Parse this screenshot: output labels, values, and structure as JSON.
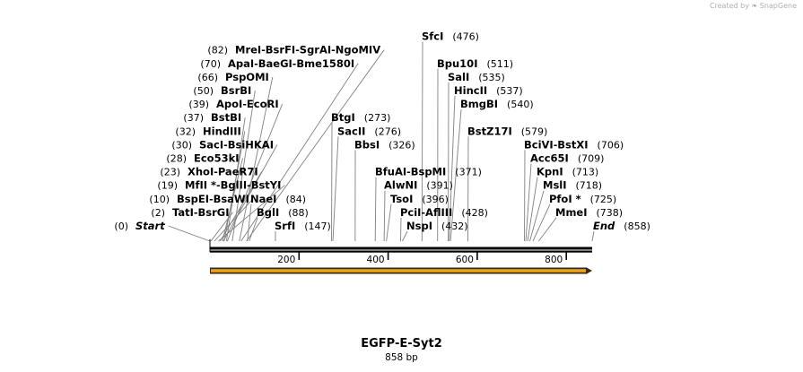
{
  "watermark": {
    "text": "Created by",
    "brand": "SnapGene"
  },
  "map": {
    "name": "EGFP-E-Syt2",
    "length_label": "858 bp",
    "length_bp": 858,
    "axis_ticks": [
      200,
      400,
      600,
      800
    ],
    "feature": {
      "start": 1,
      "end": 858,
      "color": "#f0a020",
      "direction": "forward"
    }
  },
  "sites": [
    {
      "label_pos": 0,
      "enzymes": [
        "Start"
      ],
      "italic": true
    },
    {
      "label_pos": 2,
      "enzymes": [
        "TatI",
        "BsrGI"
      ]
    },
    {
      "label_pos": 10,
      "enzymes": [
        "BspEI",
        "BsaWI"
      ]
    },
    {
      "label_pos": 19,
      "enzymes": [
        "MfII *",
        "BglII",
        "BstYI"
      ]
    },
    {
      "label_pos": 23,
      "enzymes": [
        "XhoI",
        "PaeR7I"
      ]
    },
    {
      "label_pos": 28,
      "enzymes": [
        "Eco53kI"
      ]
    },
    {
      "label_pos": 30,
      "enzymes": [
        "SacI",
        "BsiHKAI"
      ]
    },
    {
      "label_pos": 32,
      "enzymes": [
        "HindIII"
      ]
    },
    {
      "label_pos": 37,
      "enzymes": [
        "BstBI"
      ]
    },
    {
      "label_pos": 39,
      "enzymes": [
        "ApoI",
        "EcoRI"
      ]
    },
    {
      "label_pos": 50,
      "enzymes": [
        "BsrBI"
      ]
    },
    {
      "label_pos": 66,
      "enzymes": [
        "PspOMI"
      ]
    },
    {
      "label_pos": 70,
      "enzymes": [
        "ApaI",
        "BaeGI",
        "Bme1580I"
      ]
    },
    {
      "label_pos": 82,
      "enzymes": [
        "MreI",
        "BsrFI",
        "SgrAI",
        "NgoMIV"
      ]
    },
    {
      "label_pos": 84,
      "enzymes": [
        "NaeI"
      ]
    },
    {
      "label_pos": 88,
      "enzymes": [
        "BglI"
      ]
    },
    {
      "label_pos": 147,
      "enzymes": [
        "SrfI"
      ]
    },
    {
      "label_pos": 273,
      "enzymes": [
        "BtgI"
      ]
    },
    {
      "label_pos": 276,
      "enzymes": [
        "SacII"
      ]
    },
    {
      "label_pos": 326,
      "enzymes": [
        "BbsI"
      ]
    },
    {
      "label_pos": 371,
      "enzymes": [
        "BfuAI",
        "BspMI"
      ]
    },
    {
      "label_pos": 391,
      "enzymes": [
        "AlwNI"
      ]
    },
    {
      "label_pos": 396,
      "enzymes": [
        "TsoI"
      ]
    },
    {
      "label_pos": 428,
      "enzymes": [
        "PciI",
        "AflIII"
      ]
    },
    {
      "label_pos": 432,
      "enzymes": [
        "NspI"
      ]
    },
    {
      "label_pos": 476,
      "enzymes": [
        "SfcI"
      ]
    },
    {
      "label_pos": 511,
      "enzymes": [
        "Bpu10I"
      ]
    },
    {
      "label_pos": 535,
      "enzymes": [
        "SalI"
      ]
    },
    {
      "label_pos": 537,
      "enzymes": [
        "HincII"
      ]
    },
    {
      "label_pos": 540,
      "enzymes": [
        "BmgBI"
      ]
    },
    {
      "label_pos": 579,
      "enzymes": [
        "BstZ17I"
      ]
    },
    {
      "label_pos": 706,
      "enzymes": [
        "BciVI",
        "BstXI"
      ]
    },
    {
      "label_pos": 709,
      "enzymes": [
        "Acc65I"
      ]
    },
    {
      "label_pos": 713,
      "enzymes": [
        "KpnI"
      ]
    },
    {
      "label_pos": 718,
      "enzymes": [
        "MslI"
      ]
    },
    {
      "label_pos": 725,
      "enzymes": [
        "PfoI *"
      ]
    },
    {
      "label_pos": 738,
      "enzymes": [
        "MmeI"
      ]
    },
    {
      "label_pos": 858,
      "enzymes": [
        "End"
      ],
      "italic": true
    }
  ]
}
